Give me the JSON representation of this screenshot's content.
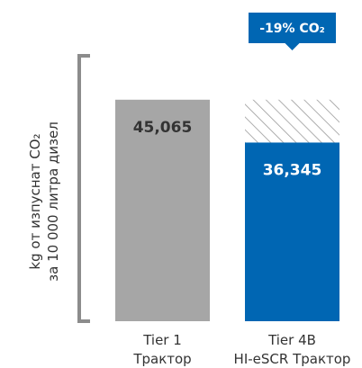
{
  "chart_data": {
    "type": "bar",
    "categories": [
      [
        "Tier 1",
        "Трактор"
      ],
      [
        "Tier 4B",
        "HI-eSCR Трактор"
      ]
    ],
    "values": [
      45065,
      36345
    ],
    "value_labels": [
      "45,065",
      "36,345"
    ],
    "reference_value": 45065,
    "ylim": [
      0,
      54000
    ],
    "ylabel": [
      "kg от изпуснат CO₂",
      "за 10 000 литра дизел"
    ],
    "annotation": "-19% CO₂",
    "grid": false,
    "legend": "none",
    "colors": {
      "bar_tier1": "#a6a6a6",
      "bar_tier4": "#0066b3",
      "hatch_line": "#9a9a9a",
      "badge": "#0066b3",
      "bracket": "#8c8c8c",
      "value_on_grey": "#333333",
      "value_on_blue": "#ffffff"
    }
  }
}
